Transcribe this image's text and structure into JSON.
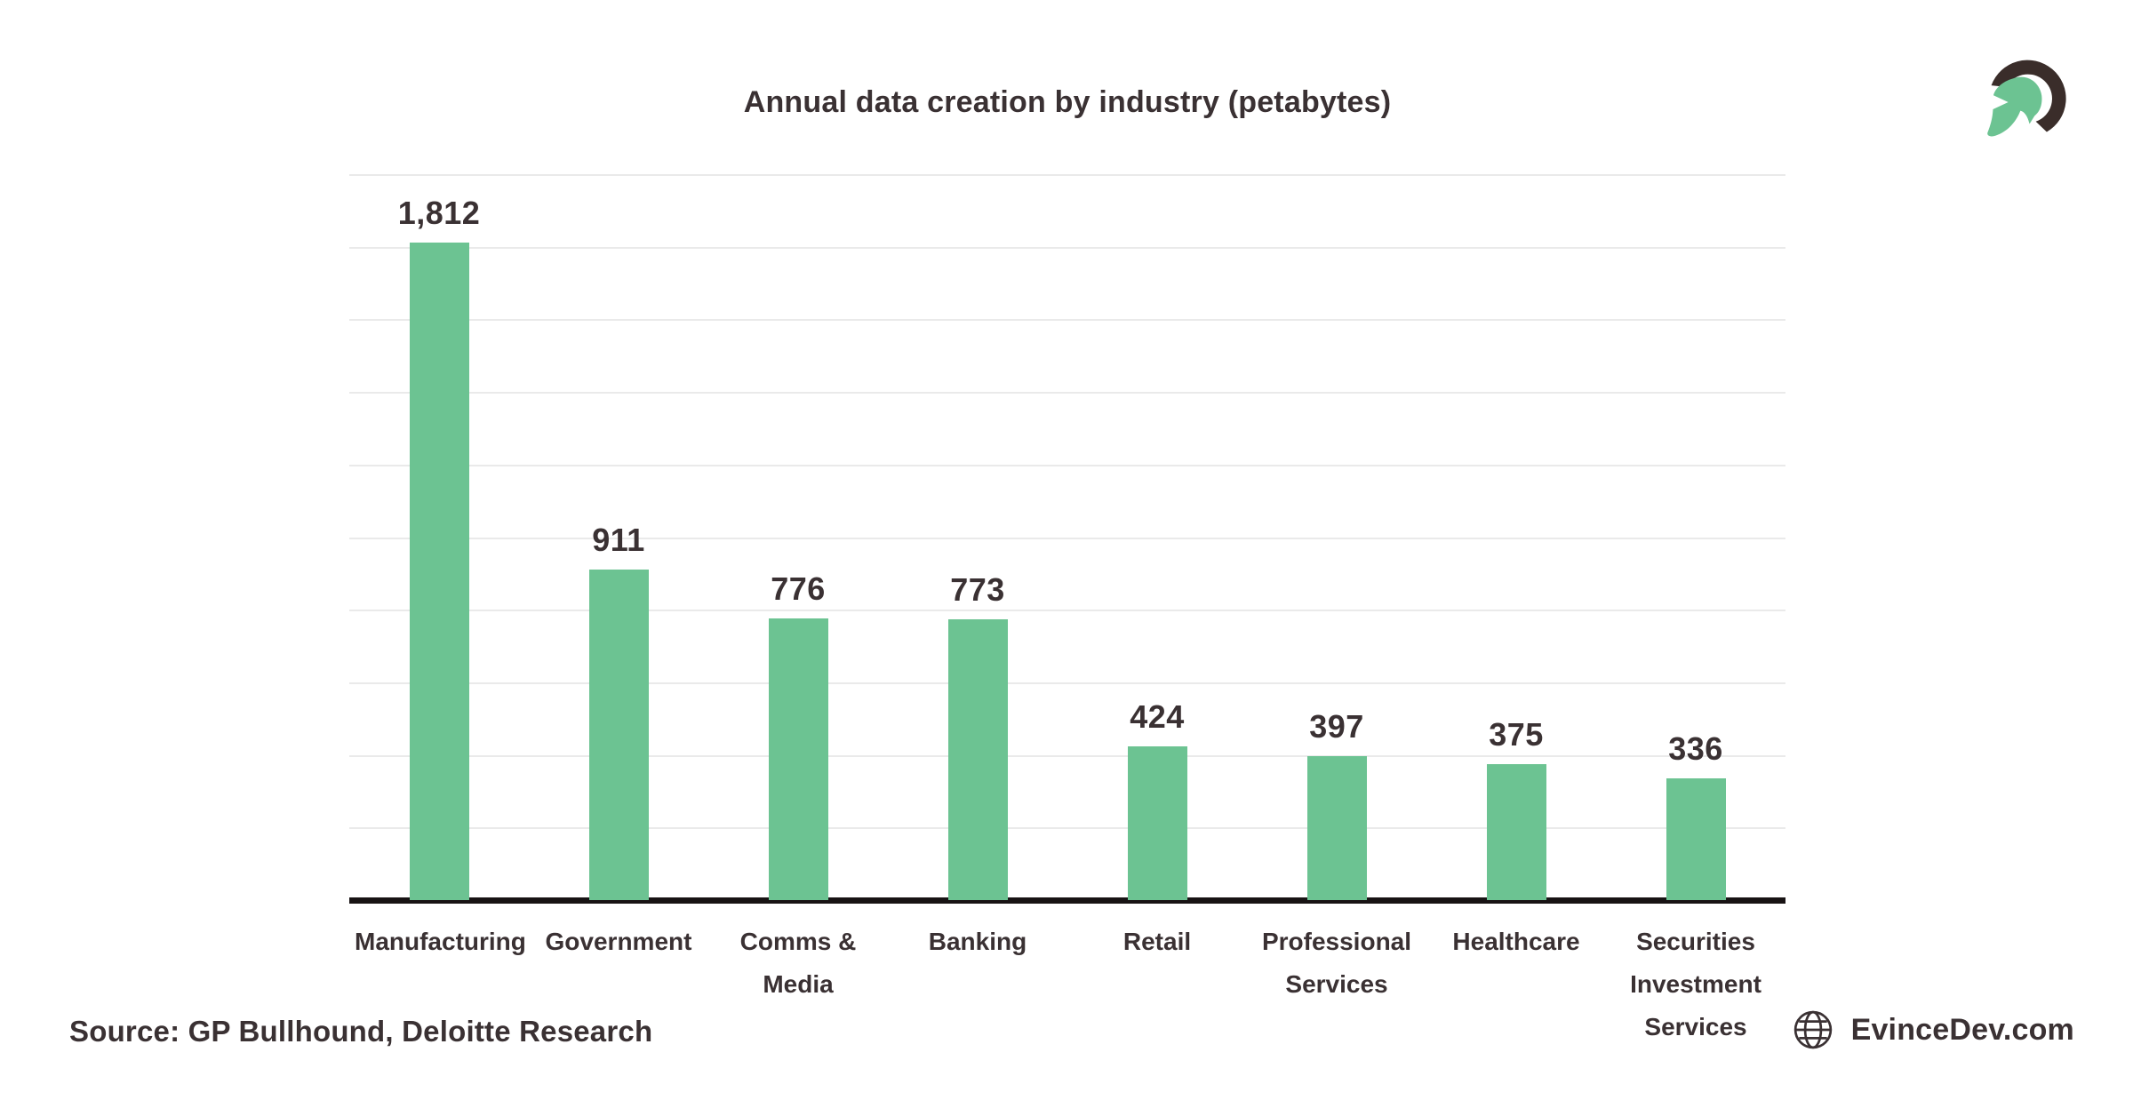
{
  "title": "Annual data creation by industry (petabytes)",
  "footer": {
    "source": "Source: GP Bullhound, Deloitte Research",
    "website": "EvinceDev.com"
  },
  "icons": {
    "logo": "spartan-helmet-logo",
    "globe": "globe-icon"
  },
  "colors": {
    "background": "#FFFFFF",
    "bar_green": "#6CC392",
    "text_dark": "#3A3133",
    "gridline": "#EAEAEA",
    "axis_black": "#181314",
    "logo_dark": "#3A2D2A"
  },
  "chart_data": {
    "type": "bar",
    "title": "Annual data creation by industry (petabytes)",
    "categories": [
      "Manufacturing",
      "Government",
      "Comms & Media",
      "Banking",
      "Retail",
      "Professional Services",
      "Healthcare",
      "Securities Investment Services"
    ],
    "values": [
      1812,
      911,
      776,
      773,
      424,
      397,
      375,
      336
    ],
    "value_labels": [
      "1,812",
      "911",
      "776",
      "773",
      "424",
      "397",
      "375",
      "336"
    ],
    "xlabel": "",
    "ylabel": "",
    "ylim": [
      0,
      2000
    ],
    "gridline_step": 200,
    "grid": true,
    "legend": false,
    "y_tick_labels_shown": false
  }
}
